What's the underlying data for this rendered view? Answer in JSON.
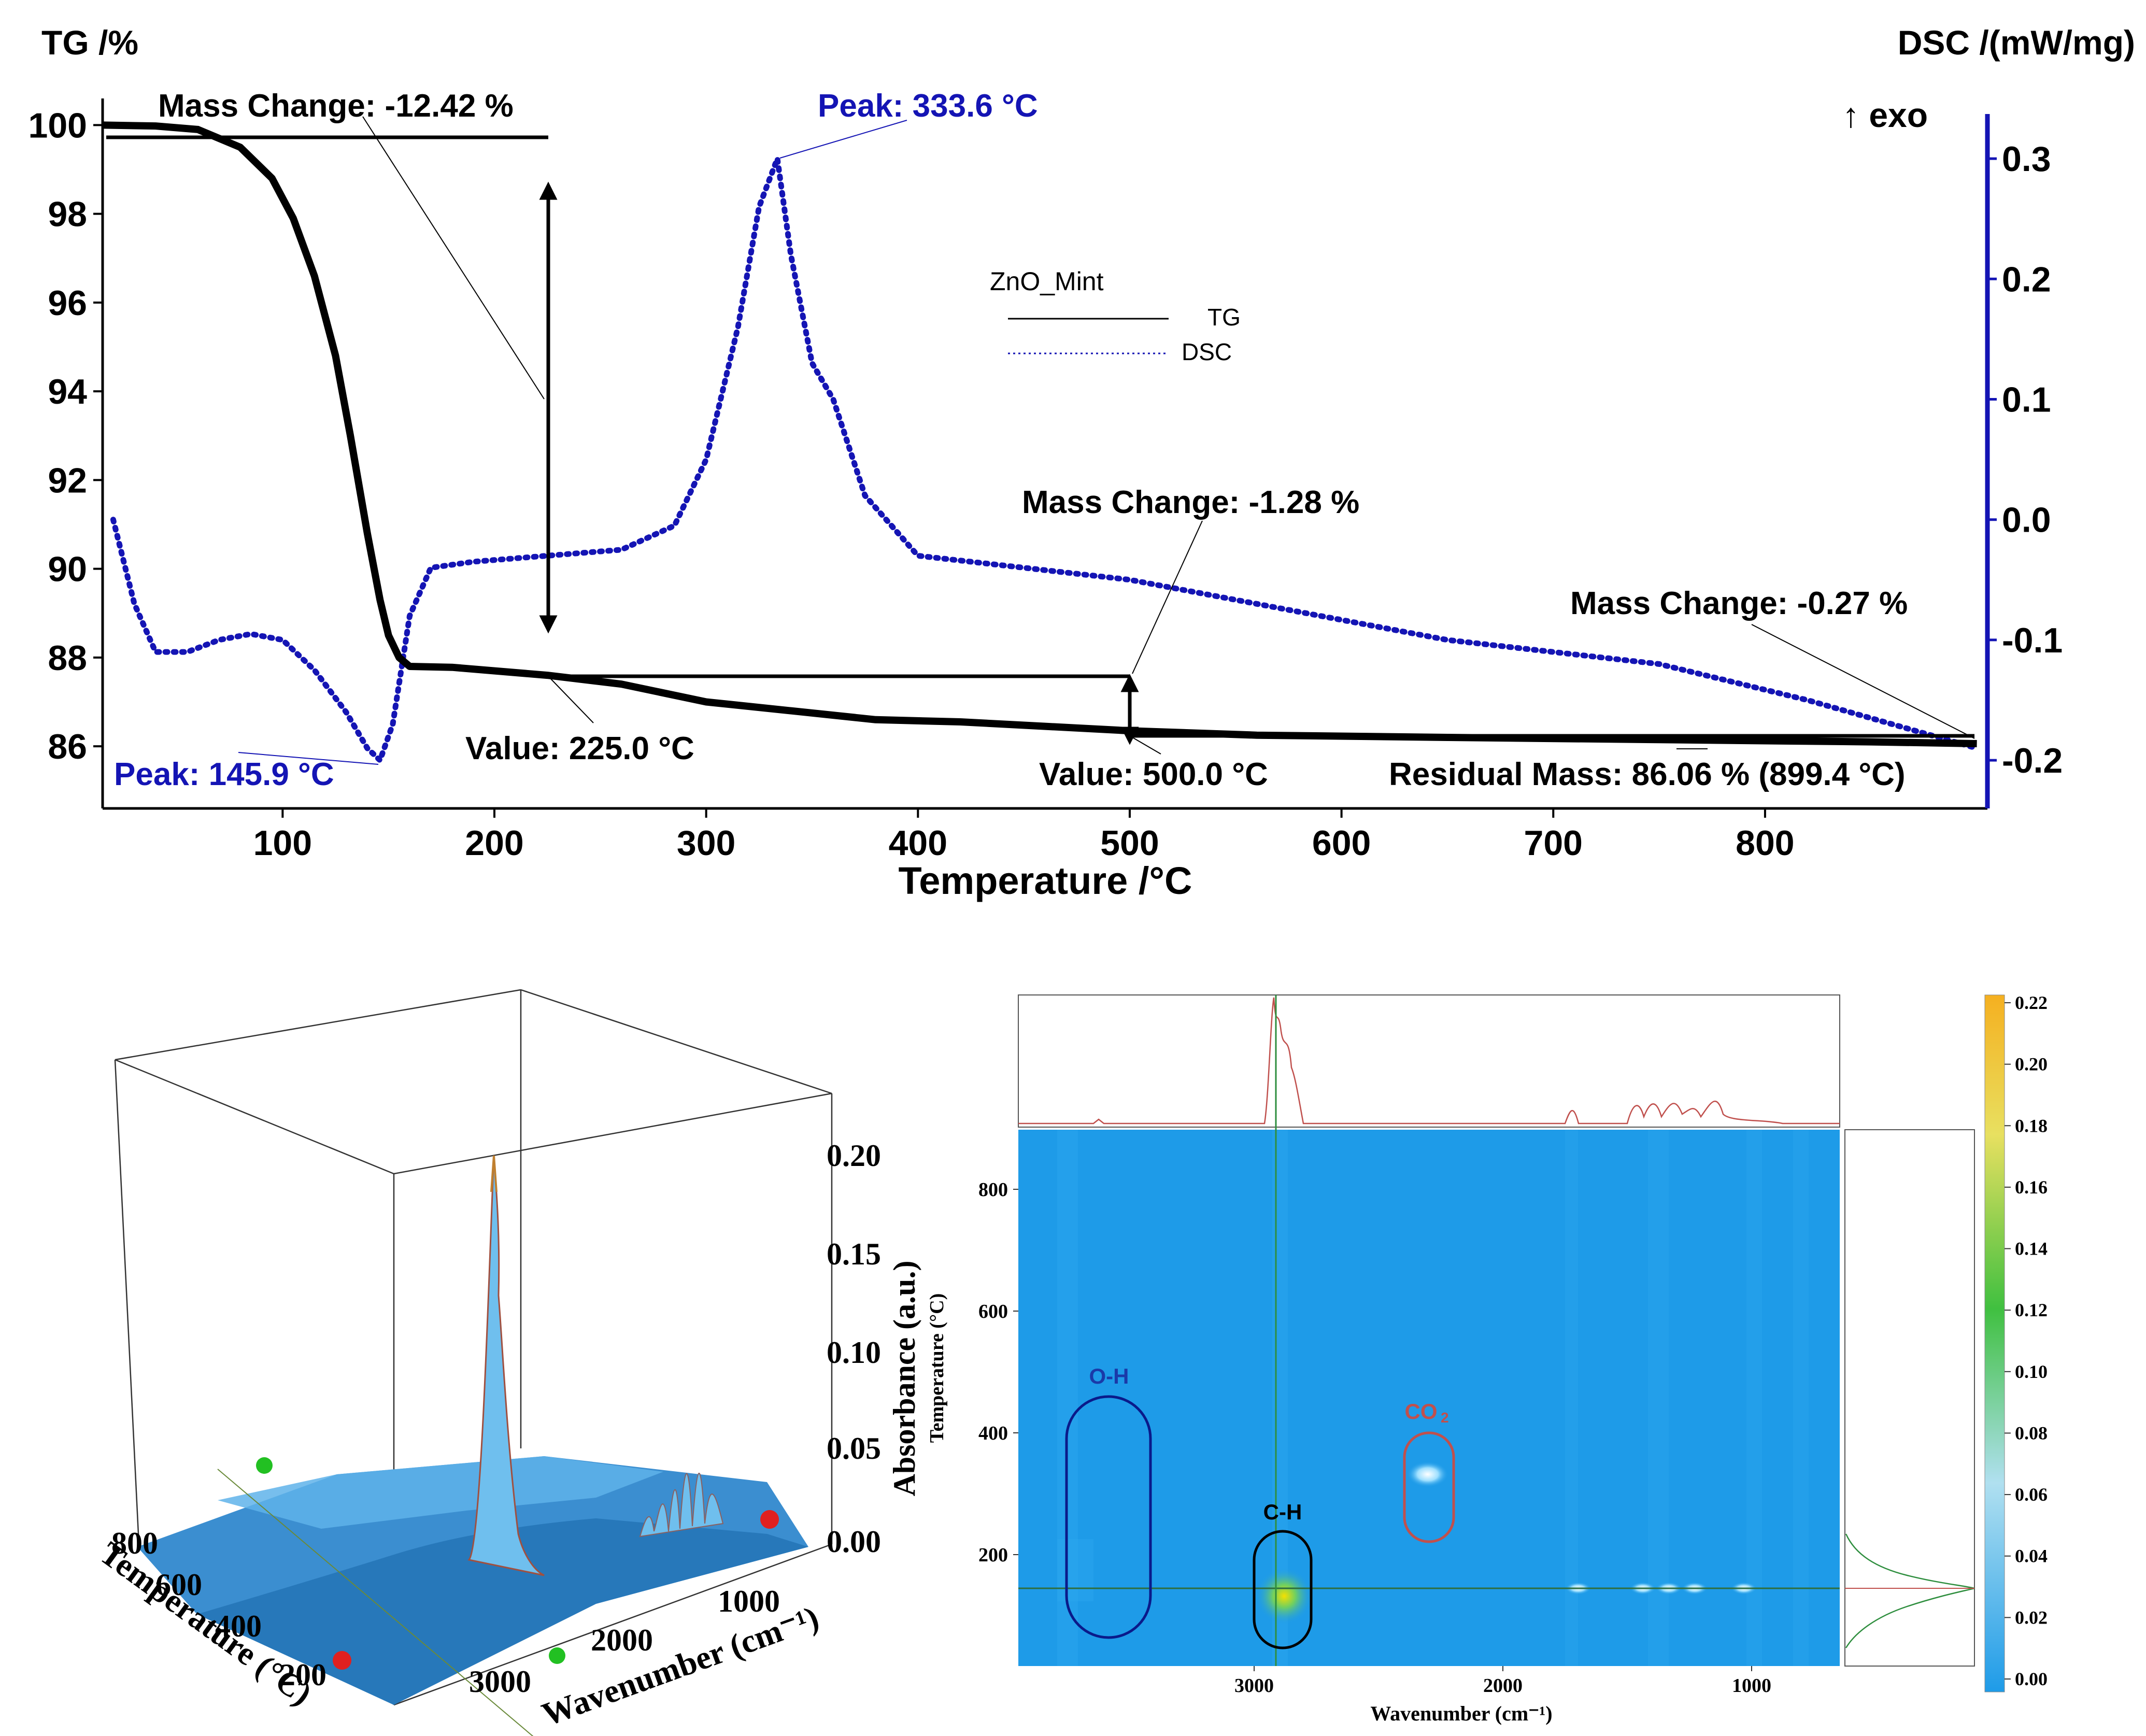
{
  "chart_data": [
    {
      "type": "line",
      "name": "TG-DSC",
      "xlabel": "Temperature /°C",
      "xlim": [
        15,
        905
      ],
      "xticks": [
        100,
        200,
        300,
        400,
        500,
        600,
        700,
        800
      ],
      "y_left": {
        "label": "TG /%",
        "lim": [
          84.6,
          100.6
        ],
        "ticks": [
          100,
          98,
          96,
          94,
          92,
          90,
          88,
          86
        ]
      },
      "y_right": {
        "label": "DSC /(mW/mg)",
        "exo": "↑ exo",
        "lim": [
          -0.24,
          0.35
        ],
        "ticks": [
          "0.3",
          "0.2",
          "0.1",
          "0.0",
          "-0.1",
          "-0.2"
        ],
        "tick_values": [
          0.3,
          0.2,
          0.1,
          0.0,
          -0.1,
          -0.2
        ]
      },
      "legend": {
        "title": "ZnO_Mint",
        "tg": "TG",
        "dsc": "DSC"
      },
      "series": [
        {
          "name": "TG",
          "color": "#000000",
          "style": "solid",
          "x": [
            15,
            40,
            60,
            80,
            95,
            105,
            115,
            125,
            132,
            140,
            146,
            150,
            155,
            160,
            180,
            225,
            260,
            300,
            340,
            380,
            420,
            460,
            500,
            560,
            650,
            750,
            850,
            900
          ],
          "y": [
            100.0,
            99.98,
            99.9,
            99.5,
            98.8,
            97.9,
            96.6,
            94.8,
            93.0,
            90.8,
            89.3,
            88.5,
            88.0,
            87.8,
            87.78,
            87.6,
            87.4,
            87.0,
            86.8,
            86.6,
            86.55,
            86.45,
            86.35,
            86.25,
            86.2,
            86.15,
            86.1,
            86.06
          ]
        },
        {
          "name": "DSC",
          "color": "#1414b4",
          "style": "dotted",
          "x": [
            20,
            30,
            40,
            55,
            70,
            85,
            100,
            115,
            130,
            140,
            146,
            152,
            160,
            170,
            190,
            225,
            260,
            285,
            300,
            315,
            325,
            333.6,
            340,
            350,
            360,
            375,
            400,
            450,
            500,
            560,
            650,
            750,
            820,
            900
          ],
          "y": [
            0.0,
            -0.07,
            -0.11,
            -0.11,
            -0.1,
            -0.095,
            -0.1,
            -0.125,
            -0.16,
            -0.19,
            -0.2,
            -0.17,
            -0.08,
            -0.04,
            -0.035,
            -0.03,
            -0.025,
            -0.005,
            0.05,
            0.16,
            0.26,
            0.3,
            0.22,
            0.13,
            0.1,
            0.02,
            -0.03,
            -0.04,
            -0.05,
            -0.07,
            -0.1,
            -0.12,
            -0.15,
            -0.19
          ]
        }
      ],
      "annotations": {
        "mass1": "Mass Change: -12.42 %",
        "mass2": "Mass Change: -1.28 %",
        "mass3": "Mass Change: -0.27 %",
        "val1": "Value: 225.0 °C",
        "val2": "Value: 500.0 °C",
        "residual": "Residual Mass: 86.06 % (899.4 °C)",
        "peak1": "Peak: 333.6 °C",
        "peak2": "Peak: 145.9 °C"
      }
    },
    {
      "type": "surface3d",
      "name": "TG-FTIR 3D spectrum",
      "zlabel": "Absorbance (a.u.)",
      "zticks": [
        "0.20",
        "0.15",
        "0.10",
        "0.05",
        "0.00"
      ],
      "xlabel": "Wavenumber (cm⁻¹)",
      "xticks": [
        "1000",
        "2000",
        "3000"
      ],
      "ylabel": "Temperature (°C)",
      "yticks": [
        "800",
        "600",
        "400",
        "200"
      ]
    },
    {
      "type": "heatmap",
      "name": "TG-FTIR contour map",
      "xlabel": "Wavenumber (cm⁻¹)",
      "xticks": [
        "3000",
        "2000",
        "1000"
      ],
      "ylabel": "Temperature (°C)",
      "yticks": [
        "800",
        "600",
        "400",
        "200"
      ],
      "colorbar_ticks": [
        "0.22",
        "0.20",
        "0.18",
        "0.16",
        "0.14",
        "0.12",
        "0.10",
        "0.08",
        "0.06",
        "0.04",
        "0.02",
        "0.00"
      ],
      "regions": {
        "oh": "O-H",
        "ch": "C-H",
        "co2": "CO",
        "co2_sub": "2"
      }
    }
  ]
}
